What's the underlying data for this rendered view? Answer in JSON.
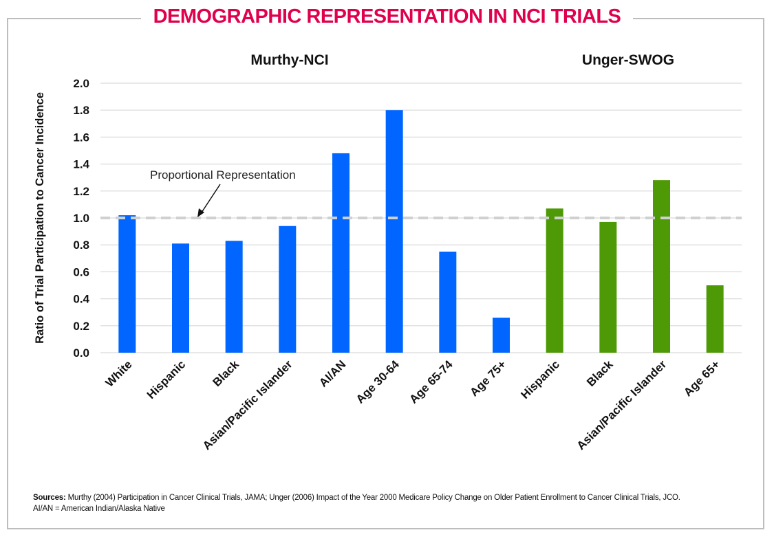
{
  "title": "DEMOGRAPHIC REPRESENTATION IN NCI TRIALS",
  "colors": {
    "title": "#e0004d",
    "group1": "#0066ff",
    "group2": "#4e9a06",
    "grid": "#d9d9d9",
    "reference": "#d0d0d0"
  },
  "sources": {
    "label": "Sources:",
    "text": "Murthy (2004) Participation in Cancer Clinical Trials, JAMA; Unger (2006) Impact of the Year 2000 Medicare Policy Change on Older Patient Enrollment to Cancer Clinical Trials, JCO.",
    "note": "AI/AN = American Indian/Alaska Native"
  },
  "chart_data": {
    "type": "bar",
    "title": "DEMOGRAPHIC REPRESENTATION IN NCI TRIALS",
    "ylabel": "Ratio of Trial Participation to Cancer Incidence",
    "xlabel": "",
    "ylim": [
      0,
      2.0
    ],
    "yticks": [
      "0.0",
      "0.2",
      "0.4",
      "0.6",
      "0.8",
      "1.0",
      "1.2",
      "1.4",
      "1.6",
      "1.8",
      "2.0"
    ],
    "grid": true,
    "groups": [
      {
        "name": "Murthy-NCI",
        "color": "#0066ff",
        "categories": [
          "White",
          "Hispanic",
          "Black",
          "Asian/Pacific Islander",
          "AI/AN",
          "Age 30-64",
          "Age 65-74",
          "Age 75+"
        ],
        "values": [
          1.02,
          0.81,
          0.83,
          0.94,
          1.48,
          1.8,
          0.75,
          0.26
        ]
      },
      {
        "name": "Unger-SWOG",
        "color": "#4e9a06",
        "categories": [
          "Hispanic",
          "Black",
          "Asian/Pacific Islander",
          "Age 65+"
        ],
        "values": [
          1.07,
          0.97,
          1.28,
          0.5
        ]
      }
    ],
    "reference_line": {
      "value": 1.0,
      "label": "Proportional Representation"
    }
  }
}
